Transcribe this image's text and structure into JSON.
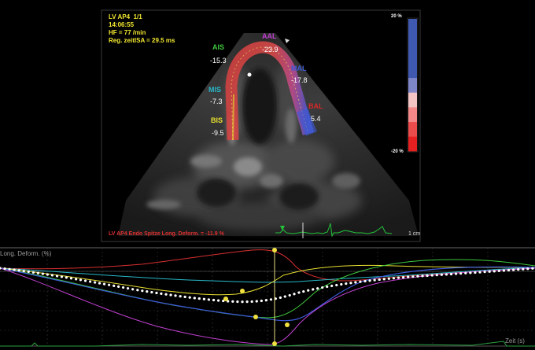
{
  "study": {
    "view": "LV AP4",
    "frame": "1/1",
    "time": "14:06:55",
    "heart_rate": "HF = 77 /min",
    "timing": "Reg. zeitISA = 29.5 ms"
  },
  "segments": [
    {
      "id": "AIS",
      "value": "-15.3",
      "color": "#3ec83e"
    },
    {
      "id": "AAL",
      "value": "-23.9",
      "color": "#c040d0"
    },
    {
      "id": "MAL",
      "value": "-17.8",
      "color": "#3d5ad8"
    },
    {
      "id": "MIS",
      "value": "-7.3",
      "color": "#28b8c8"
    },
    {
      "id": "BAL",
      "value": "5.4",
      "color": "#d82828"
    },
    {
      "id": "BIS",
      "value": "-9.5",
      "color": "#e8e030"
    }
  ],
  "color_scale": {
    "max_label": "20 %",
    "min_label": "-20 %",
    "colors": [
      "#3f58b0",
      "#3f58b0",
      "#3f58b0",
      "#3f58b0",
      "#7e86c8",
      "#f3c4c4",
      "#f28888",
      "#ea4b4b",
      "#e42020"
    ]
  },
  "footer": {
    "roi_label": "LV AP4 Endo Spitze Long. Deform. = -11.9 %",
    "depth_label": "1 cm"
  },
  "plot": {
    "y_label": "Long. Deform. (%)",
    "x_label": "Zeit (s)"
  }
}
